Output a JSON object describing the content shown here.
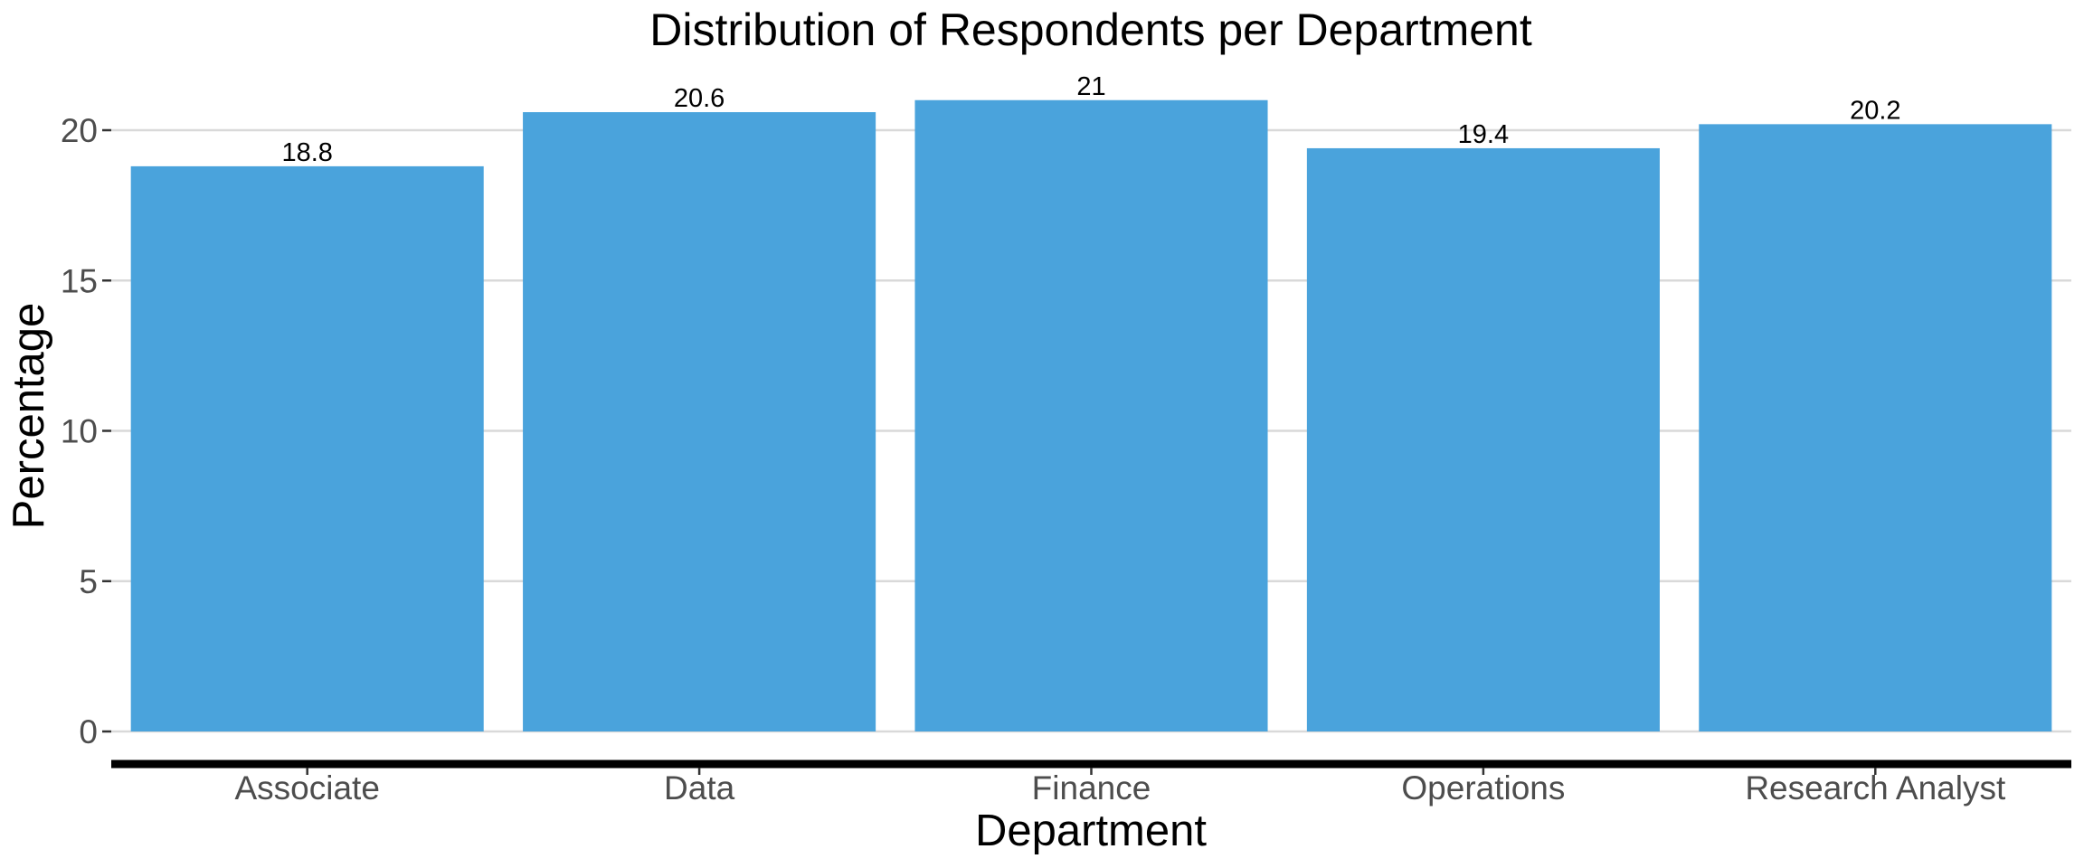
{
  "chart_data": {
    "type": "bar",
    "title": "Distribution of Respondents per Department",
    "xlabel": "Department",
    "ylabel": "Percentage",
    "categories": [
      "Associate",
      "Data",
      "Finance",
      "Operations",
      "Research Analyst"
    ],
    "values": [
      18.8,
      20.6,
      21,
      19.4,
      20.2
    ],
    "data_labels": [
      "18.8",
      "20.6",
      "21",
      "19.4",
      "20.2"
    ],
    "yticks": [
      0,
      5,
      10,
      15,
      20
    ],
    "ytick_labels": [
      "0",
      "5",
      "10",
      "15",
      "20"
    ],
    "ylim": [
      0,
      21.6
    ],
    "grid": "horizontal-major",
    "legend": "none",
    "bar_color": "#4AA3DC"
  }
}
